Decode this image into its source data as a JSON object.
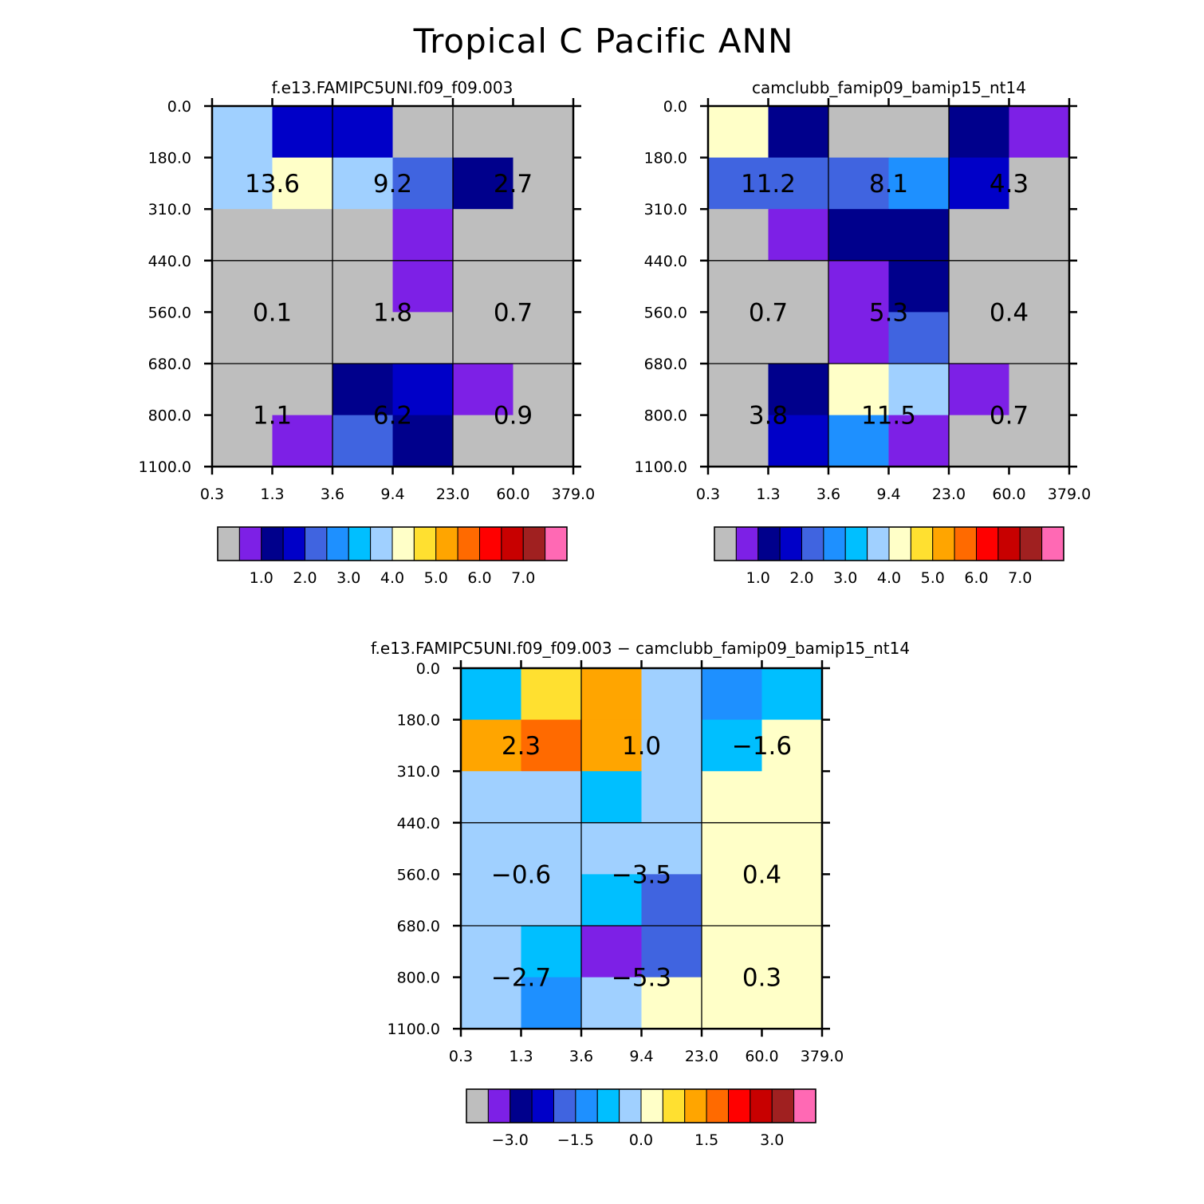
{
  "title": "Tropical C Pacific ANN",
  "chart_data": [
    {
      "type": "heatmap",
      "title": "f.e13.FAMIPC5UNI.f09_f09.003",
      "x_ticks": [
        "0.3",
        "1.3",
        "3.6",
        "9.4",
        "23.0",
        "60.0",
        "379.0"
      ],
      "y_ticks": [
        "0.0",
        "180.0",
        "310.0",
        "440.0",
        "560.0",
        "680.0",
        "800.0",
        "1100.0"
      ],
      "cell_colors": [
        [
          "#a0d0ff",
          "#0000c8",
          "#0000c8",
          "#bebebe",
          "#bebebe",
          "#bebebe"
        ],
        [
          "#a0d0ff",
          "#ffffc8",
          "#a0d0ff",
          "#4064e0",
          "#00008c",
          "#bebebe"
        ],
        [
          "#bebebe",
          "#bebebe",
          "#bebebe",
          "#7d20e6",
          "#bebebe",
          "#bebebe"
        ],
        [
          "#bebebe",
          "#bebebe",
          "#bebebe",
          "#7d20e6",
          "#bebebe",
          "#bebebe"
        ],
        [
          "#bebebe",
          "#bebebe",
          "#bebebe",
          "#bebebe",
          "#bebebe",
          "#bebebe"
        ],
        [
          "#bebebe",
          "#bebebe",
          "#00008c",
          "#0000c8",
          "#7d20e6",
          "#bebebe"
        ],
        [
          "#bebebe",
          "#7d20e6",
          "#4064e0",
          "#00008c",
          "#bebebe",
          "#bebebe"
        ]
      ],
      "box_values": [
        [
          "13.6",
          "9.2",
          "2.7"
        ],
        [
          "0.1",
          "1.8",
          "0.7"
        ],
        [
          "1.1",
          "6.2",
          "0.9"
        ]
      ],
      "colorbar": {
        "colors": [
          "#bebebe",
          "#7d20e6",
          "#00008c",
          "#0000c8",
          "#4064e0",
          "#1e90ff",
          "#00bfff",
          "#a0d0ff",
          "#ffffc8",
          "#ffe030",
          "#ffa500",
          "#ff6a00",
          "#ff0000",
          "#c80000",
          "#a02020",
          "#ff69b4"
        ],
        "labels": [
          "1.0",
          "2.0",
          "3.0",
          "4.0",
          "5.0",
          "6.0",
          "7.0"
        ],
        "label_bins": [
          2,
          4,
          6,
          8,
          10,
          12,
          14
        ]
      }
    },
    {
      "type": "heatmap",
      "title": "camclubb_famip09_bamip15_nt14",
      "x_ticks": [
        "0.3",
        "1.3",
        "3.6",
        "9.4",
        "23.0",
        "60.0",
        "379.0"
      ],
      "y_ticks": [
        "0.0",
        "180.0",
        "310.0",
        "440.0",
        "560.0",
        "680.0",
        "800.0",
        "1100.0"
      ],
      "cell_colors": [
        [
          "#ffffc8",
          "#00008c",
          "#bebebe",
          "#bebebe",
          "#00008c",
          "#7d20e6"
        ],
        [
          "#4064e0",
          "#4064e0",
          "#4064e0",
          "#1e90ff",
          "#0000c8",
          "#bebebe"
        ],
        [
          "#bebebe",
          "#7d20e6",
          "#00008c",
          "#00008c",
          "#bebebe",
          "#bebebe"
        ],
        [
          "#bebebe",
          "#bebebe",
          "#7d20e6",
          "#00008c",
          "#bebebe",
          "#bebebe"
        ],
        [
          "#bebebe",
          "#bebebe",
          "#7d20e6",
          "#4064e0",
          "#bebebe",
          "#bebebe"
        ],
        [
          "#bebebe",
          "#00008c",
          "#ffffc8",
          "#a0d0ff",
          "#7d20e6",
          "#bebebe"
        ],
        [
          "#bebebe",
          "#0000c8",
          "#1e90ff",
          "#7d20e6",
          "#bebebe",
          "#bebebe"
        ]
      ],
      "box_values": [
        [
          "11.2",
          "8.1",
          "4.3"
        ],
        [
          "0.7",
          "5.3",
          "0.4"
        ],
        [
          "3.8",
          "11.5",
          "0.7"
        ]
      ],
      "colorbar": {
        "colors": [
          "#bebebe",
          "#7d20e6",
          "#00008c",
          "#0000c8",
          "#4064e0",
          "#1e90ff",
          "#00bfff",
          "#a0d0ff",
          "#ffffc8",
          "#ffe030",
          "#ffa500",
          "#ff6a00",
          "#ff0000",
          "#c80000",
          "#a02020",
          "#ff69b4"
        ],
        "labels": [
          "1.0",
          "2.0",
          "3.0",
          "4.0",
          "5.0",
          "6.0",
          "7.0"
        ],
        "label_bins": [
          2,
          4,
          6,
          8,
          10,
          12,
          14
        ]
      }
    },
    {
      "type": "heatmap",
      "title": "f.e13.FAMIPC5UNI.f09_f09.003 − camclubb_famip09_bamip15_nt14",
      "x_ticks": [
        "0.3",
        "1.3",
        "3.6",
        "9.4",
        "23.0",
        "60.0",
        "379.0"
      ],
      "y_ticks": [
        "0.0",
        "180.0",
        "310.0",
        "440.0",
        "560.0",
        "680.0",
        "800.0",
        "1100.0"
      ],
      "cell_colors": [
        [
          "#00bfff",
          "#ffe030",
          "#ffa500",
          "#a0d0ff",
          "#1e90ff",
          "#00bfff"
        ],
        [
          "#ffa500",
          "#ff6a00",
          "#ffa500",
          "#a0d0ff",
          "#00bfff",
          "#ffffc8"
        ],
        [
          "#a0d0ff",
          "#a0d0ff",
          "#00bfff",
          "#a0d0ff",
          "#ffffc8",
          "#ffffc8"
        ],
        [
          "#a0d0ff",
          "#a0d0ff",
          "#a0d0ff",
          "#a0d0ff",
          "#ffffc8",
          "#ffffc8"
        ],
        [
          "#a0d0ff",
          "#a0d0ff",
          "#00bfff",
          "#4064e0",
          "#ffffc8",
          "#ffffc8"
        ],
        [
          "#a0d0ff",
          "#00bfff",
          "#7d20e6",
          "#4064e0",
          "#ffffc8",
          "#ffffc8"
        ],
        [
          "#a0d0ff",
          "#1e90ff",
          "#a0d0ff",
          "#ffffc8",
          "#ffffc8",
          "#ffffc8"
        ]
      ],
      "box_values": [
        [
          "2.3",
          "1.0",
          "−1.6"
        ],
        [
          "−0.6",
          "−3.5",
          "0.4"
        ],
        [
          "−2.7",
          "−5.3",
          "0.3"
        ]
      ],
      "colorbar": {
        "colors": [
          "#bebebe",
          "#7d20e6",
          "#00008c",
          "#0000c8",
          "#4064e0",
          "#1e90ff",
          "#00bfff",
          "#a0d0ff",
          "#ffffc8",
          "#ffe030",
          "#ffa500",
          "#ff6a00",
          "#ff0000",
          "#c80000",
          "#a02020",
          "#ff69b4"
        ],
        "labels": [
          "−3.0",
          "−1.5",
          "0.0",
          "1.5",
          "3.0"
        ],
        "label_bins": [
          2,
          5,
          8,
          11,
          14
        ]
      }
    }
  ]
}
